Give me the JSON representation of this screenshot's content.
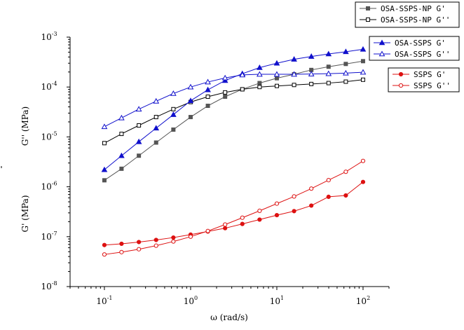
{
  "chart_data": {
    "type": "line",
    "xscale": "log",
    "yscale": "log",
    "xlim": [
      0.04,
      200
    ],
    "ylim": [
      1e-08,
      0.001
    ],
    "xlabel": "ω  (rad/s)",
    "ylabel_upper": "G'' (MPa)",
    "ylabel_lower": "G' (MPa)",
    "x_ticks": [
      {
        "value": 0.1,
        "base": "10",
        "exp": "-1"
      },
      {
        "value": 1,
        "base": "10",
        "exp": "0"
      },
      {
        "value": 10,
        "base": "10",
        "exp": "1"
      },
      {
        "value": 100,
        "base": "10",
        "exp": "2"
      }
    ],
    "y_ticks": [
      {
        "value": 1e-08,
        "base": "10",
        "exp": "-8"
      },
      {
        "value": 1e-07,
        "base": "10",
        "exp": "-7"
      },
      {
        "value": 1e-06,
        "base": "10",
        "exp": "-6"
      },
      {
        "value": 1e-05,
        "base": "10",
        "exp": "-5"
      },
      {
        "value": 0.0001,
        "base": "10",
        "exp": "-4"
      },
      {
        "value": 0.001,
        "base": "10",
        "exp": "-3"
      }
    ],
    "x": [
      0.1,
      0.158,
      0.251,
      0.398,
      0.631,
      1.0,
      1.585,
      2.512,
      3.981,
      6.31,
      10.0,
      15.85,
      25.12,
      39.81,
      63.1,
      100.0
    ],
    "series": [
      {
        "name": "OSA-SSPS-NP G'",
        "color": "#555555",
        "marker": "square",
        "filled": true,
        "values": [
          1.35e-06,
          2.3e-06,
          4.2e-06,
          7.7e-06,
          1.4e-05,
          2.5e-05,
          4.2e-05,
          6.4e-05,
          9e-05,
          0.00012,
          0.00015,
          0.00018,
          0.00022,
          0.000255,
          0.00029,
          0.00033
        ]
      },
      {
        "name": "OSA-SSPS-NP G''",
        "color": "#000000",
        "marker": "square",
        "filled": false,
        "values": [
          7.5e-06,
          1.15e-05,
          1.7e-05,
          2.5e-05,
          3.6e-05,
          5e-05,
          6.4e-05,
          7.8e-05,
          9e-05,
          0.0001,
          0.000105,
          0.00011,
          0.000115,
          0.00012,
          0.000128,
          0.00014
        ]
      },
      {
        "name": "OSA-SSPS G'",
        "color": "#1010cc",
        "marker": "triangle",
        "filled": true,
        "values": [
          2.2e-06,
          4.2e-06,
          8e-06,
          1.5e-05,
          2.8e-05,
          5.3e-05,
          8.8e-05,
          0.000135,
          0.000185,
          0.000245,
          0.0003,
          0.00036,
          0.00041,
          0.00046,
          0.00051,
          0.00057
        ]
      },
      {
        "name": "OSA-SSPS G''",
        "color": "#1010cc",
        "marker": "triangle",
        "filled": false,
        "values": [
          1.6e-05,
          2.4e-05,
          3.6e-05,
          5.2e-05,
          7.4e-05,
          0.0001,
          0.000126,
          0.000152,
          0.000175,
          0.00018,
          0.00018,
          0.00018,
          0.000182,
          0.000185,
          0.00019,
          0.000198
        ]
      },
      {
        "name": "SSPS G'",
        "color": "#dd1111",
        "marker": "circle",
        "filled": true,
        "values": [
          6.8e-08,
          7.2e-08,
          7.8e-08,
          8.6e-08,
          9.6e-08,
          1.1e-07,
          1.27e-07,
          1.48e-07,
          1.8e-07,
          2.2e-07,
          2.7e-07,
          3.25e-07,
          4.2e-07,
          6.3e-07,
          6.7e-07,
          1.25e-06
        ]
      },
      {
        "name": "SSPS G''",
        "color": "#dd1111",
        "marker": "circle",
        "filled": false,
        "values": [
          4.4e-08,
          4.9e-08,
          5.6e-08,
          6.6e-08,
          8e-08,
          1e-07,
          1.3e-07,
          1.75e-07,
          2.4e-07,
          3.3e-07,
          4.6e-07,
          6.4e-07,
          9.2e-07,
          1.36e-06,
          2e-06,
          3.3e-06
        ]
      }
    ],
    "legends": [
      {
        "placement": "top-right",
        "entries": [
          "OSA-SSPS-NP G'",
          "OSA-SSPS-NP G''"
        ]
      },
      {
        "placement": "upper-right",
        "entries": [
          "OSA-SSPS G'",
          "OSA-SSPS G''"
        ]
      },
      {
        "placement": "middle-right",
        "entries": [
          "SSPS G'",
          "SSPS G''"
        ]
      }
    ]
  }
}
